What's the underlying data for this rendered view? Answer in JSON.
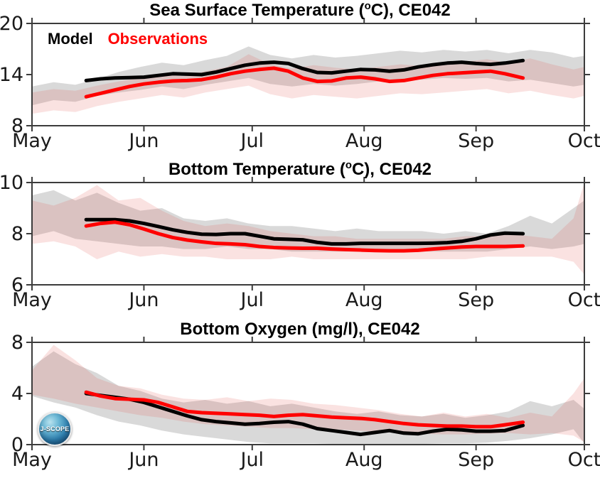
{
  "colors": {
    "model_line": "#000000",
    "observations_line": "#ff0000",
    "model_band": "rgba(120,120,120,0.28)",
    "observations_band": "rgba(225,75,70,0.16)",
    "axis": "#3c3c3c",
    "tick_label": "#1a1a1a"
  },
  "legend": {
    "model_label": "Model",
    "observations_label": "Observations"
  },
  "logo": {
    "label": "J-SCOPE"
  },
  "x_axis": {
    "tick_labels": [
      "May",
      "Jun",
      "Jul",
      "Aug",
      "Sep",
      "Oct"
    ],
    "tick_days": [
      0,
      31,
      61,
      92,
      123,
      153
    ],
    "domain_days": [
      0,
      153
    ],
    "series_days": [
      15,
      19,
      23,
      27,
      31,
      35,
      39,
      43,
      47,
      51,
      55,
      59,
      63,
      67,
      71,
      75,
      79,
      83,
      87,
      91,
      95,
      99,
      103,
      107,
      111,
      115,
      119,
      123,
      127,
      131,
      136
    ],
    "band_days": [
      0,
      6,
      12,
      18,
      24,
      30,
      36,
      42,
      48,
      54,
      60,
      66,
      72,
      78,
      84,
      90,
      96,
      102,
      108,
      114,
      120,
      126,
      132,
      138,
      144,
      150,
      153
    ]
  },
  "chart_data": [
    {
      "type": "line",
      "title": {
        "prefix": "Sea Surface Temperature (",
        "superscript": "o",
        "suffix": "C), CE042"
      },
      "ylim": [
        8,
        20
      ],
      "yticks": [
        8,
        14,
        20
      ],
      "ylabelless": true,
      "model_values": [
        13.3,
        13.5,
        13.6,
        13.65,
        13.7,
        13.9,
        14.1,
        14.05,
        14.0,
        14.3,
        14.7,
        15.1,
        15.35,
        15.45,
        15.3,
        14.7,
        14.25,
        14.2,
        14.4,
        14.6,
        14.55,
        14.4,
        14.55,
        14.9,
        15.15,
        15.35,
        15.45,
        15.3,
        15.2,
        15.35,
        15.65
      ],
      "observations_values": [
        11.4,
        11.8,
        12.2,
        12.6,
        12.9,
        13.1,
        13.25,
        13.3,
        13.4,
        13.7,
        14.1,
        14.4,
        14.6,
        14.75,
        14.4,
        13.6,
        13.2,
        13.25,
        13.6,
        13.7,
        13.5,
        13.2,
        13.3,
        13.6,
        13.9,
        14.1,
        14.2,
        14.3,
        14.4,
        14.1,
        13.6
      ],
      "bands": {
        "model_upper": [
          12.6,
          13.1,
          12.8,
          13.5,
          14.3,
          14.9,
          15.4,
          15.1,
          15.7,
          16.2,
          17.3,
          16.3,
          15.9,
          16.3,
          16.0,
          16.2,
          16.5,
          16.8,
          16.6,
          16.9,
          16.7,
          16.9,
          16.5,
          16.9,
          16.6,
          16.0,
          16.2
        ],
        "model_lower": [
          10.4,
          11.0,
          10.8,
          11.5,
          11.9,
          12.2,
          12.6,
          12.3,
          12.8,
          13.2,
          13.6,
          12.9,
          12.6,
          12.9,
          12.7,
          12.9,
          13.2,
          13.5,
          13.4,
          13.6,
          13.5,
          13.6,
          13.2,
          13.4,
          13.0,
          12.6,
          12.8
        ],
        "observations_upper": [
          11.9,
          12.3,
          12.1,
          12.7,
          13.2,
          13.6,
          14.0,
          13.8,
          14.4,
          14.9,
          16.4,
          15.2,
          14.7,
          15.1,
          14.8,
          14.6,
          14.9,
          15.2,
          15.0,
          15.3,
          15.5,
          15.8,
          15.4,
          15.9,
          15.2,
          14.6,
          14.9
        ],
        "observations_lower": [
          9.4,
          9.8,
          9.6,
          10.3,
          10.8,
          11.2,
          11.6,
          11.3,
          11.9,
          12.3,
          12.7,
          11.7,
          11.2,
          11.6,
          11.4,
          11.2,
          11.5,
          11.8,
          11.7,
          11.9,
          12.1,
          12.3,
          11.8,
          12.1,
          11.6,
          11.2,
          11.5
        ]
      }
    },
    {
      "type": "line",
      "title": {
        "prefix": "Bottom Temperature (",
        "superscript": "o",
        "suffix": "C), CE042"
      },
      "ylim": [
        6,
        10
      ],
      "yticks": [
        6,
        8,
        10
      ],
      "model_values": [
        8.55,
        8.55,
        8.55,
        8.5,
        8.4,
        8.28,
        8.15,
        8.05,
        7.98,
        7.97,
        8.0,
        8.0,
        7.9,
        7.8,
        7.78,
        7.76,
        7.66,
        7.6,
        7.6,
        7.62,
        7.62,
        7.62,
        7.62,
        7.62,
        7.63,
        7.65,
        7.7,
        7.8,
        7.95,
        8.02,
        8.0
      ],
      "observations_values": [
        8.3,
        8.4,
        8.45,
        8.35,
        8.18,
        8.0,
        7.85,
        7.75,
        7.68,
        7.62,
        7.6,
        7.57,
        7.5,
        7.46,
        7.44,
        7.43,
        7.43,
        7.4,
        7.38,
        7.36,
        7.34,
        7.33,
        7.33,
        7.35,
        7.4,
        7.44,
        7.48,
        7.5,
        7.5,
        7.5,
        7.52
      ],
      "bands": {
        "model_upper": [
          9.5,
          9.7,
          9.3,
          9.6,
          9.2,
          8.9,
          9.0,
          8.6,
          8.5,
          8.6,
          8.4,
          8.3,
          8.3,
          8.2,
          8.1,
          8.2,
          8.1,
          8.1,
          8.1,
          8.0,
          8.1,
          8.0,
          8.3,
          8.7,
          8.4,
          9.0,
          9.3
        ],
        "model_lower": [
          7.9,
          8.1,
          7.8,
          7.7,
          7.6,
          7.5,
          7.5,
          7.4,
          7.4,
          7.5,
          7.4,
          7.4,
          7.3,
          7.3,
          7.3,
          7.3,
          7.3,
          7.3,
          7.3,
          7.3,
          7.3,
          7.3,
          7.4,
          7.5,
          7.4,
          7.5,
          7.6
        ],
        "observations_upper": [
          9.3,
          9.1,
          9.4,
          9.9,
          9.3,
          9.4,
          8.9,
          8.5,
          8.3,
          8.4,
          8.3,
          8.1,
          8.0,
          7.9,
          7.9,
          7.8,
          7.8,
          7.8,
          7.8,
          7.8,
          7.9,
          7.9,
          8.0,
          7.9,
          7.8,
          8.6,
          10.0
        ],
        "observations_lower": [
          7.6,
          7.7,
          7.5,
          7.0,
          7.3,
          7.1,
          7.2,
          7.1,
          7.1,
          7.0,
          7.0,
          7.0,
          7.1,
          7.0,
          7.0,
          7.0,
          7.0,
          7.0,
          7.0,
          7.0,
          7.0,
          7.1,
          7.1,
          7.1,
          7.1,
          6.9,
          6.4
        ]
      }
    },
    {
      "type": "line",
      "title": {
        "prefix": "Bottom Oxygen (mg/l), CE042",
        "superscript": "",
        "suffix": ""
      },
      "ylim": [
        0,
        8
      ],
      "yticks": [
        0,
        4,
        8
      ],
      "model_values": [
        4.0,
        3.85,
        3.7,
        3.55,
        3.3,
        2.95,
        2.6,
        2.25,
        1.95,
        1.8,
        1.7,
        1.6,
        1.65,
        1.75,
        1.8,
        1.6,
        1.25,
        1.1,
        0.95,
        0.8,
        0.95,
        1.1,
        0.9,
        0.85,
        1.05,
        1.2,
        1.15,
        1.05,
        1.05,
        1.1,
        1.5
      ],
      "observations_values": [
        4.1,
        3.8,
        3.6,
        3.55,
        3.5,
        3.3,
        2.95,
        2.6,
        2.5,
        2.45,
        2.4,
        2.35,
        2.3,
        2.2,
        2.3,
        2.35,
        2.25,
        2.15,
        2.1,
        2.05,
        1.95,
        1.8,
        1.65,
        1.55,
        1.5,
        1.45,
        1.45,
        1.4,
        1.4,
        1.55,
        1.75
      ],
      "bands": {
        "model_upper": [
          6.1,
          7.3,
          6.3,
          5.6,
          4.6,
          4.2,
          3.6,
          3.3,
          3.5,
          3.2,
          3.4,
          3.0,
          3.2,
          2.9,
          2.6,
          2.4,
          2.6,
          2.3,
          2.2,
          2.4,
          2.1,
          2.3,
          2.6,
          3.4,
          3.0,
          3.5,
          2.8
        ],
        "model_lower": [
          3.8,
          3.3,
          2.9,
          2.3,
          1.8,
          1.5,
          1.1,
          0.8,
          0.6,
          0.4,
          0.2,
          0.1,
          0.1,
          0.1,
          0.05,
          0.05,
          0.05,
          0.05,
          0.05,
          0.1,
          0.1,
          0.15,
          0.3,
          0.5,
          0.8,
          1.2,
          0.1
        ],
        "observations_upper": [
          5.8,
          7.8,
          6.6,
          5.2,
          4.6,
          4.4,
          3.9,
          3.6,
          3.5,
          3.7,
          3.4,
          3.6,
          3.5,
          3.2,
          3.1,
          2.9,
          2.7,
          2.4,
          2.2,
          2.5,
          2.2,
          2.4,
          2.1,
          2.5,
          2.2,
          4.0,
          5.2
        ],
        "observations_lower": [
          3.9,
          3.6,
          3.2,
          2.9,
          2.6,
          2.3,
          2.1,
          1.8,
          1.6,
          1.5,
          1.4,
          1.3,
          1.3,
          1.2,
          1.2,
          1.1,
          1.0,
          0.9,
          0.85,
          0.8,
          0.8,
          0.85,
          0.9,
          0.8,
          0.9,
          0.7,
          0.2
        ]
      }
    }
  ]
}
